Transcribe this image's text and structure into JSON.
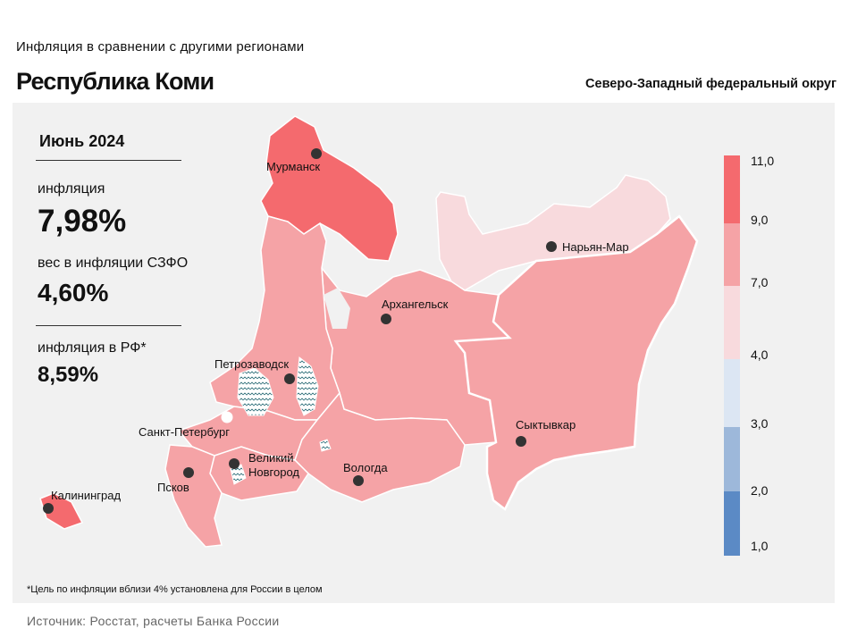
{
  "header": {
    "supertitle": "Инфляция в сравнении с другими регионами",
    "region": "Республика Коми",
    "district": "Северо-Западный федеральный округ"
  },
  "stats": {
    "period": "Июнь 2024",
    "inflation_label": "инфляция",
    "inflation_value": "7,98%",
    "weight_label": "вес в инфляции СЗФО",
    "weight_value": "4,60%",
    "rf_label": "инфляция в РФ*",
    "rf_value": "8,59%"
  },
  "cities": [
    {
      "name": "Мурманск"
    },
    {
      "name": "Нарьян-Мар"
    },
    {
      "name": "Архангельск"
    },
    {
      "name": "Петрозаводск"
    },
    {
      "name": "Санкт-Петербург"
    },
    {
      "name": "Сыктывкар"
    },
    {
      "name": "Великий"
    },
    {
      "name": "Новгород"
    },
    {
      "name": "Вологда"
    },
    {
      "name": "Псков"
    },
    {
      "name": "Калининград"
    }
  ],
  "legend": {
    "labels": [
      "11,0",
      "9,0",
      "7,0",
      "4,0",
      "3,0",
      "2,0",
      "1,0"
    ],
    "colors": [
      "#f46a6e",
      "#f5a3a6",
      "#f8dadd",
      "#dce6f3",
      "#9db8da",
      "#5b8ac5"
    ]
  },
  "colors": {
    "high": "#f46a6e",
    "mid": "#f5a3a6",
    "low": "#f8dadd",
    "panel": "#f1f1f1"
  },
  "footnote": "*Цель по инфляции вблизи 4% установлена для России в целом",
  "source": "Источник: Росстат, расчеты Банка России"
}
